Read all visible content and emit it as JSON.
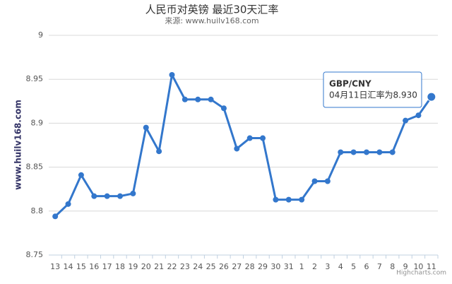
{
  "chart_data": {
    "type": "line",
    "title": "人民币对英镑 最近30天汇率",
    "subtitle": "来源: www.huilv168.com",
    "y_label": "www.huilv168.com",
    "credits": "Highcharts.com",
    "tooltip": {
      "title": "GBP/CNY",
      "text": "04月11日汇率为8.930"
    },
    "categories": [
      "13",
      "14",
      "15",
      "16",
      "17",
      "18",
      "19",
      "20",
      "21",
      "22",
      "23",
      "24",
      "25",
      "26",
      "27",
      "28",
      "29",
      "30",
      "31",
      "1",
      "2",
      "3",
      "4",
      "5",
      "6",
      "7",
      "8",
      "9",
      "10",
      "11"
    ],
    "values": [
      8.794,
      8.808,
      8.841,
      8.817,
      8.817,
      8.817,
      8.82,
      8.895,
      8.868,
      8.955,
      8.927,
      8.927,
      8.927,
      8.917,
      8.871,
      8.883,
      8.883,
      8.813,
      8.813,
      8.813,
      8.834,
      8.834,
      8.867,
      8.867,
      8.867,
      8.867,
      8.867,
      8.903,
      8.909,
      8.93
    ],
    "color": "#3377cc",
    "ylim": [
      8.75,
      9
    ],
    "yticks": [
      8.75,
      8.8,
      8.85,
      8.9,
      8.95,
      9
    ],
    "grid": true
  }
}
